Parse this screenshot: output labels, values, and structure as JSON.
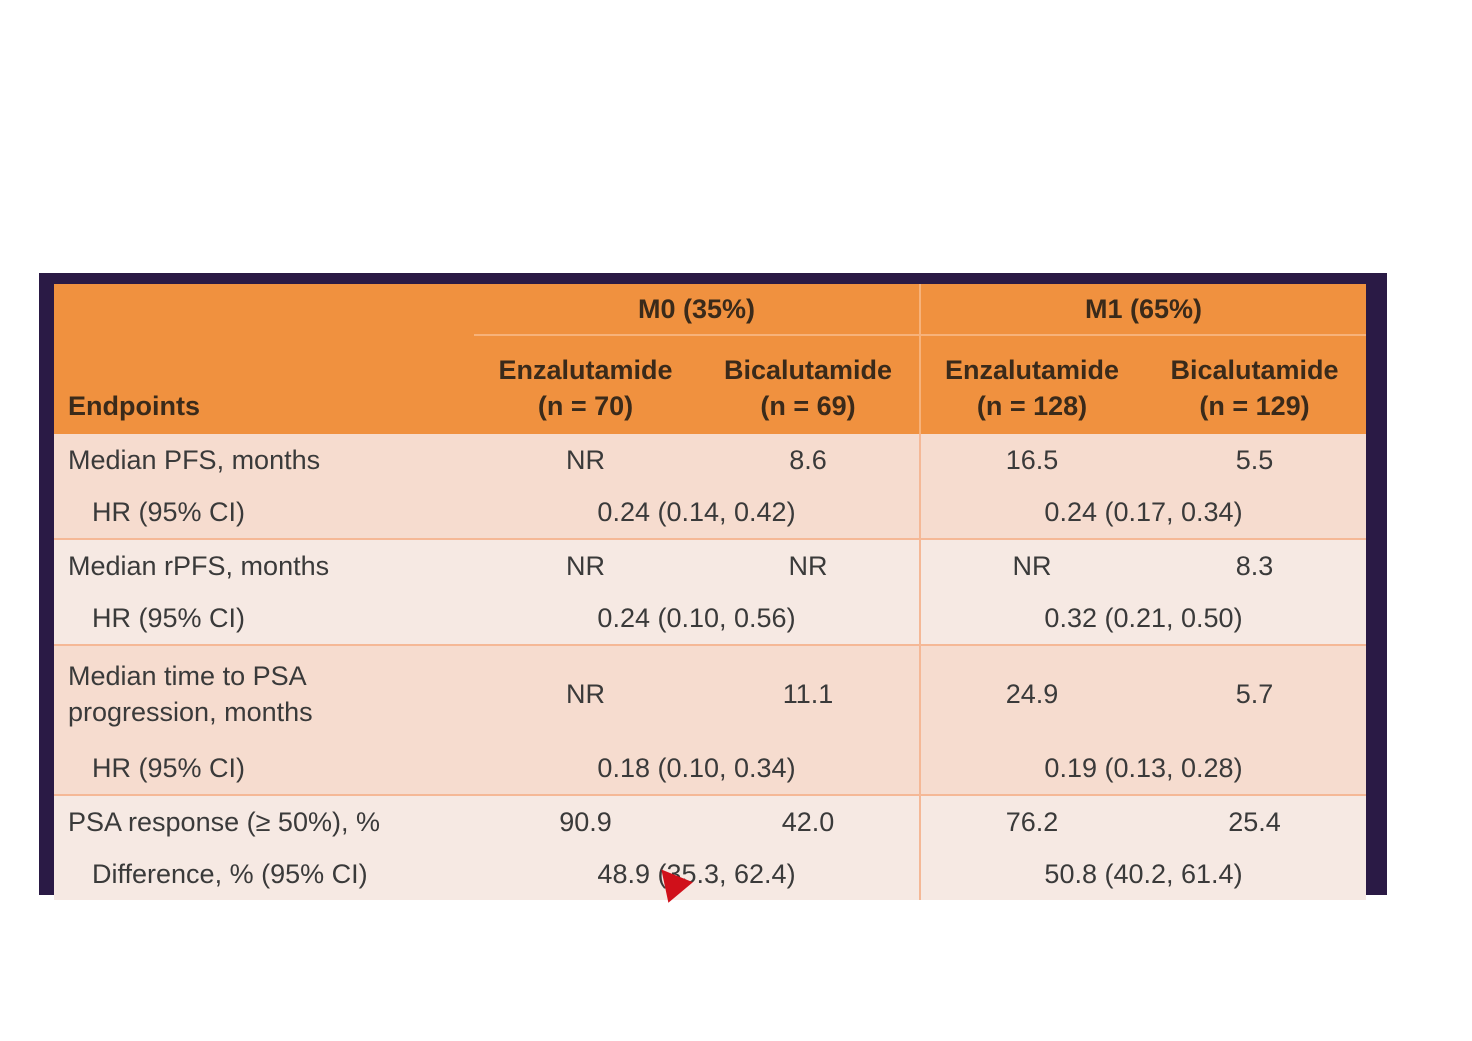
{
  "table": {
    "group_headers": [
      "M0 (35%)",
      "M1 (65%)"
    ],
    "endpoint_header": "Endpoints",
    "sub_headers": [
      {
        "name": "Enzalutamide",
        "n": "(n = 70)"
      },
      {
        "name": "Bicalutamide",
        "n": "(n = 69)"
      },
      {
        "name": "Enzalutamide",
        "n": "(n = 128)"
      },
      {
        "name": "Bicalutamide",
        "n": "(n = 129)"
      }
    ],
    "rows": [
      {
        "label": "Median PFS, months",
        "values": [
          "NR",
          "8.6",
          "16.5",
          "5.5"
        ],
        "hr_label": "HR (95% CI)",
        "hr_m0": "0.24 (0.14, 0.42)",
        "hr_m1": "0.24 (0.17, 0.34)"
      },
      {
        "label": "Median rPFS, months",
        "values": [
          "NR",
          "NR",
          "NR",
          "8.3"
        ],
        "hr_label": "HR (95% CI)",
        "hr_m0": "0.24 (0.10, 0.56)",
        "hr_m1": "0.32 (0.21, 0.50)"
      },
      {
        "label_line1": "Median time to PSA",
        "label_line2": "progression, months",
        "values": [
          "NR",
          "11.1",
          "24.9",
          "5.7"
        ],
        "hr_label": "HR (95% CI)",
        "hr_m0": "0.18 (0.10, 0.34)",
        "hr_m1": "0.19 (0.13, 0.28)"
      },
      {
        "label": "PSA response (≥ 50%), %",
        "values": [
          "90.9",
          "42.0",
          "76.2",
          "25.4"
        ],
        "hr_label": "Difference, % (95% CI)",
        "hr_m0": "48.9 (35.3, 62.4)",
        "hr_m1": "50.8 (40.2, 61.4)"
      }
    ]
  },
  "colors": {
    "header": "#f0913f",
    "band_a": "#f6dccf",
    "band_b": "#f6e9e3",
    "frame": "#2a1a45",
    "cursor": "#d0101a"
  },
  "cursor_icon": "mouse-pointer-icon"
}
